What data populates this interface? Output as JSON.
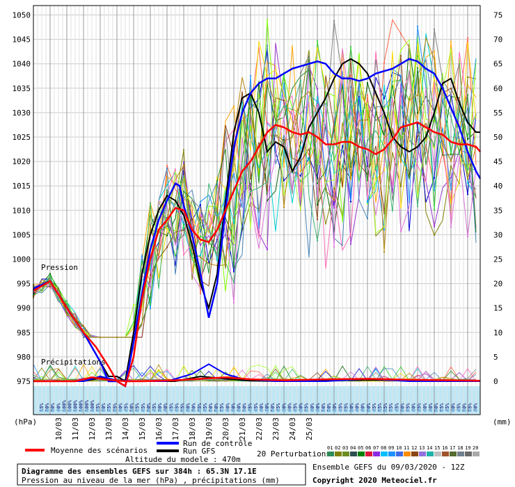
{
  "chart_data": {
    "type": "line",
    "left_axis": {
      "unit": "(hPa)",
      "ticks": [
        1050,
        1045,
        1040,
        1035,
        1030,
        1025,
        1020,
        1015,
        1010,
        1005,
        1000,
        995,
        990,
        985,
        980,
        975
      ]
    },
    "right_axis": {
      "unit": "(mm)",
      "ticks": [
        75,
        70,
        65,
        60,
        55,
        50,
        45,
        40,
        35,
        30,
        25,
        20,
        15,
        10,
        5,
        0
      ]
    },
    "dates": [
      "10/03",
      "11/03",
      "12/03",
      "13/03",
      "14/03",
      "15/03",
      "16/03",
      "17/03",
      "18/03",
      "19/03",
      "20/03",
      "21/03",
      "22/03",
      "23/03",
      "24/03",
      "25/03"
    ],
    "pressure_label": "Pression",
    "precip_label": "Précipitations",
    "precip_percent": [
      "15%",
      "20%",
      "20%",
      "40%",
      "100%",
      "100%",
      "100%",
      "100%",
      "100%",
      "100%",
      "65%",
      "60%",
      "65%",
      "75%",
      "60%",
      "45%",
      "50%",
      "65%",
      "65%",
      "50%",
      "45%",
      "30%",
      "40%",
      "45%",
      "65%",
      "55%",
      "60%",
      "70%",
      "75%",
      "65%",
      "50%",
      "50%",
      "55%",
      "60%",
      "60%",
      "60%",
      "50%",
      "45%",
      "45%",
      "40%",
      "40%",
      "50%",
      "45%",
      "40%",
      "40%",
      "45%",
      "40%",
      "35%",
      "40%",
      "40%",
      "50%",
      "50%",
      "40%",
      "45%",
      "35%",
      "20%",
      "40%",
      "40%",
      "50%",
      "45%",
      "25%",
      "25%",
      "35%",
      "45%",
      "30%",
      "35%",
      "40%",
      "45%",
      "40%",
      "40%",
      "50%",
      "55%",
      "45%",
      "40%",
      "45%",
      "50%",
      "55%",
      "40%"
    ],
    "mean_pressure": [
      [
        0,
        993.5
      ],
      [
        4,
        995.5
      ],
      [
        8,
        990
      ],
      [
        12,
        985
      ],
      [
        15,
        982
      ],
      [
        18,
        978
      ],
      [
        20,
        975
      ],
      [
        22,
        974
      ],
      [
        24,
        980
      ],
      [
        26,
        992
      ],
      [
        28,
        1000
      ],
      [
        30,
        1006
      ],
      [
        32,
        1008
      ],
      [
        34,
        1010.5
      ],
      [
        36,
        1010
      ],
      [
        38,
        1006
      ],
      [
        40,
        1004
      ],
      [
        42,
        1003.5
      ],
      [
        44,
        1006
      ],
      [
        46,
        1010
      ],
      [
        48,
        1014
      ],
      [
        50,
        1018
      ],
      [
        52,
        1020
      ],
      [
        54,
        1023
      ],
      [
        56,
        1026
      ],
      [
        58,
        1027.5
      ],
      [
        60,
        1027
      ],
      [
        62,
        1026
      ],
      [
        64,
        1025.5
      ],
      [
        66,
        1026
      ],
      [
        68,
        1025
      ],
      [
        70,
        1023.5
      ],
      [
        72,
        1023.5
      ],
      [
        74,
        1024
      ],
      [
        76,
        1024
      ],
      [
        78,
        1023
      ],
      [
        80,
        1022.5
      ],
      [
        82,
        1021.5
      ],
      [
        84,
        1022.5
      ],
      [
        86,
        1024.5
      ],
      [
        88,
        1027
      ],
      [
        90,
        1027.5
      ],
      [
        92,
        1028
      ],
      [
        94,
        1027
      ],
      [
        96,
        1026
      ],
      [
        98,
        1025.5
      ],
      [
        100,
        1024
      ],
      [
        102,
        1023.5
      ],
      [
        104,
        1023.5
      ],
      [
        106,
        1023
      ],
      [
        107,
        1022
      ]
    ],
    "control_pressure": [
      [
        0,
        994
      ],
      [
        4,
        995.5
      ],
      [
        8,
        990
      ],
      [
        12,
        985
      ],
      [
        16,
        979
      ],
      [
        18,
        975
      ],
      [
        20,
        975
      ],
      [
        22,
        974
      ],
      [
        24,
        983
      ],
      [
        26,
        993
      ],
      [
        28,
        1002
      ],
      [
        30,
        1008
      ],
      [
        32,
        1012
      ],
      [
        34,
        1015.5
      ],
      [
        35,
        1015
      ],
      [
        36,
        1011
      ],
      [
        38,
        1005
      ],
      [
        40,
        997
      ],
      [
        42,
        988
      ],
      [
        44,
        995
      ],
      [
        46,
        1010
      ],
      [
        48,
        1023
      ],
      [
        50,
        1030
      ],
      [
        52,
        1034
      ],
      [
        54,
        1036
      ],
      [
        56,
        1037
      ],
      [
        58,
        1037
      ],
      [
        60,
        1038
      ],
      [
        62,
        1039
      ],
      [
        64,
        1039.5
      ],
      [
        66,
        1040
      ],
      [
        68,
        1040.5
      ],
      [
        70,
        1040
      ],
      [
        72,
        1038
      ],
      [
        74,
        1037
      ],
      [
        76,
        1037
      ],
      [
        78,
        1036.5
      ],
      [
        80,
        1037
      ],
      [
        82,
        1038
      ],
      [
        84,
        1038.5
      ],
      [
        86,
        1039
      ],
      [
        88,
        1040
      ],
      [
        90,
        1041
      ],
      [
        92,
        1040.5
      ],
      [
        94,
        1039
      ],
      [
        96,
        1038
      ],
      [
        98,
        1035
      ],
      [
        100,
        1031
      ],
      [
        102,
        1027
      ],
      [
        104,
        1022
      ],
      [
        106,
        1018
      ],
      [
        107,
        1016.5
      ]
    ],
    "gfs_pressure": [
      [
        0,
        994
      ],
      [
        4,
        995.5
      ],
      [
        8,
        990
      ],
      [
        12,
        985
      ],
      [
        16,
        979
      ],
      [
        18,
        976
      ],
      [
        20,
        976
      ],
      [
        22,
        975
      ],
      [
        24,
        985
      ],
      [
        26,
        997
      ],
      [
        28,
        1005
      ],
      [
        30,
        1010
      ],
      [
        32,
        1013
      ],
      [
        34,
        1012
      ],
      [
        36,
        1009
      ],
      [
        38,
        1003
      ],
      [
        40,
        995
      ],
      [
        42,
        990
      ],
      [
        44,
        997
      ],
      [
        46,
        1012
      ],
      [
        48,
        1026
      ],
      [
        50,
        1033
      ],
      [
        52,
        1034
      ],
      [
        54,
        1030
      ],
      [
        56,
        1022
      ],
      [
        58,
        1024
      ],
      [
        60,
        1023
      ],
      [
        62,
        1018
      ],
      [
        64,
        1021
      ],
      [
        66,
        1027
      ],
      [
        68,
        1030
      ],
      [
        70,
        1033
      ],
      [
        72,
        1037
      ],
      [
        74,
        1040
      ],
      [
        76,
        1041
      ],
      [
        78,
        1040
      ],
      [
        80,
        1038
      ],
      [
        82,
        1034
      ],
      [
        84,
        1030
      ],
      [
        86,
        1025
      ],
      [
        88,
        1023
      ],
      [
        90,
        1022
      ],
      [
        92,
        1023
      ],
      [
        94,
        1025
      ],
      [
        96,
        1030
      ],
      [
        98,
        1036
      ],
      [
        100,
        1037
      ],
      [
        102,
        1032
      ],
      [
        104,
        1028
      ],
      [
        106,
        1026
      ],
      [
        107,
        1026
      ]
    ],
    "mean_precip": [
      [
        0,
        0
      ],
      [
        10,
        0
      ],
      [
        14,
        0.8
      ],
      [
        18,
        0.3
      ],
      [
        22,
        0
      ],
      [
        26,
        0
      ],
      [
        34,
        0.2
      ],
      [
        40,
        0.5
      ],
      [
        46,
        0.8
      ],
      [
        52,
        0.4
      ],
      [
        60,
        0.2
      ],
      [
        70,
        0.4
      ],
      [
        80,
        0.5
      ],
      [
        90,
        0.3
      ],
      [
        100,
        0.2
      ],
      [
        107,
        0.1
      ]
    ],
    "control_precip": [
      [
        0,
        0
      ],
      [
        12,
        0
      ],
      [
        16,
        1
      ],
      [
        20,
        0.2
      ],
      [
        24,
        0
      ],
      [
        32,
        0
      ],
      [
        38,
        1.5
      ],
      [
        42,
        3.5
      ],
      [
        46,
        1.5
      ],
      [
        50,
        0.5
      ],
      [
        58,
        0
      ],
      [
        70,
        0
      ],
      [
        80,
        0.5
      ],
      [
        90,
        0
      ],
      [
        107,
        0
      ]
    ],
    "gfs_precip": [
      [
        0,
        0
      ],
      [
        12,
        0
      ],
      [
        16,
        0.7
      ],
      [
        20,
        0.1
      ],
      [
        24,
        0
      ],
      [
        34,
        0
      ],
      [
        40,
        1
      ],
      [
        46,
        0.5
      ],
      [
        52,
        0.1
      ],
      [
        60,
        0
      ],
      [
        80,
        0.3
      ],
      [
        107,
        0
      ]
    ],
    "perturbation_colors": [
      "#006400",
      "#ffa500",
      "#808000",
      "#0000cd",
      "#ff6347",
      "#7fff00",
      "#9932cc",
      "#00ced1",
      "#1e90ff",
      "#32cd32",
      "#ffd700",
      "#ff69b4",
      "#8b4513",
      "#4682b4",
      "#adff2f",
      "#228b22",
      "#808080",
      "#da70d6",
      "#3cb371",
      "#b8860b"
    ],
    "legend_swatch_colors": [
      "#2e8b57",
      "#808000",
      "#6b8e23",
      "#2f4f4f",
      "#008000",
      "#dc143c",
      "#8a2be2",
      "#00bfff",
      "#1e90ff",
      "#4169e1",
      "#ff8c00",
      "#8b4513",
      "#9370db",
      "#20b2aa",
      "#c0c0c0",
      "#a0522d",
      "#556b2f",
      "#708090",
      "#696969",
      "#a9a9a9"
    ],
    "colors": {
      "mean": "#ff0000",
      "control": "#0000ff",
      "gfs": "#000000",
      "gridline": "#c8c8c8",
      "precip_band": "#bfe7f5"
    },
    "legend": {
      "mean_label": "Moyenne des scénarios",
      "control_label": "Run de contrôle",
      "gfs_label": "Run GFS",
      "perturb_label": "20 Perturbations",
      "perturb_numbers": [
        "01",
        "02",
        "03",
        "04",
        "05",
        "06",
        "07",
        "08",
        "09",
        "10",
        "11",
        "12",
        "13",
        "14",
        "15",
        "16",
        "17",
        "18",
        "19",
        "20"
      ]
    },
    "altitude_text": "Altitude du modele : 470m",
    "info": {
      "title": "Diagramme des ensembles GEFS sur 384h : 65.3N 17.1E",
      "subtitle": "Pression au niveau de la mer (hPa) , précipitations (mm)"
    },
    "right_info": {
      "run": "Ensemble GEFS du 09/03/2020 - 12Z",
      "copyright": "Copyright 2020 Meteociel.fr"
    }
  }
}
